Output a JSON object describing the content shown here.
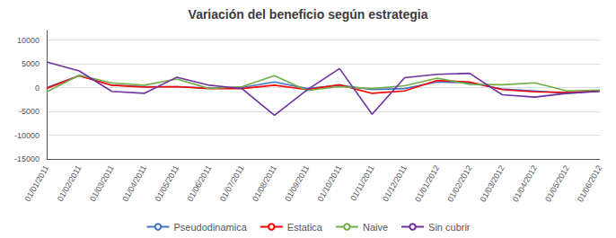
{
  "chart_data": {
    "type": "line",
    "title": "Variación del beneficio según estrategia",
    "categories": [
      "01/01/2011",
      "01/02/2011",
      "01/03/2011",
      "01/04/2011",
      "01/05/2011",
      "01/06/2011",
      "01/07/2011",
      "01/08/2011",
      "01/09/2011",
      "01/10/2011",
      "01/11/2011",
      "01/12/2011",
      "01/01/2012",
      "01/02/2012",
      "01/03/2012",
      "01/04/2012",
      "01/05/2012",
      "01/06/2012"
    ],
    "series": [
      {
        "name": "Pseudodinamica",
        "color": "#4472C4",
        "values": [
          0,
          2500,
          500,
          200,
          200,
          -100,
          0,
          1200,
          -200,
          500,
          -400,
          -200,
          1200,
          1000,
          -300,
          -700,
          -1200,
          -700
        ]
      },
      {
        "name": "Estatica",
        "color": "#FF0000",
        "values": [
          -200,
          2500,
          500,
          100,
          200,
          -200,
          -200,
          500,
          -400,
          600,
          -1200,
          -700,
          1500,
          1200,
          -400,
          -900,
          -1000,
          -700
        ]
      },
      {
        "name": "Naive",
        "color": "#70AD47",
        "values": [
          -900,
          2600,
          1000,
          500,
          1800,
          -200,
          200,
          2500,
          -600,
          200,
          -200,
          400,
          2000,
          700,
          600,
          1000,
          -700,
          -500
        ]
      },
      {
        "name": "Sin cubrir",
        "color": "#7030A0",
        "values": [
          5400,
          3500,
          -800,
          -1200,
          2200,
          500,
          -200,
          -5800,
          -500,
          4000,
          -5600,
          2100,
          2800,
          3000,
          -1500,
          -2000,
          -1200,
          -800
        ]
      }
    ],
    "ylim": [
      -15000,
      12000
    ],
    "yticks": [
      -15000,
      -10000,
      -5000,
      0,
      5000,
      10000
    ],
    "grid": true,
    "legend": "bottom"
  }
}
